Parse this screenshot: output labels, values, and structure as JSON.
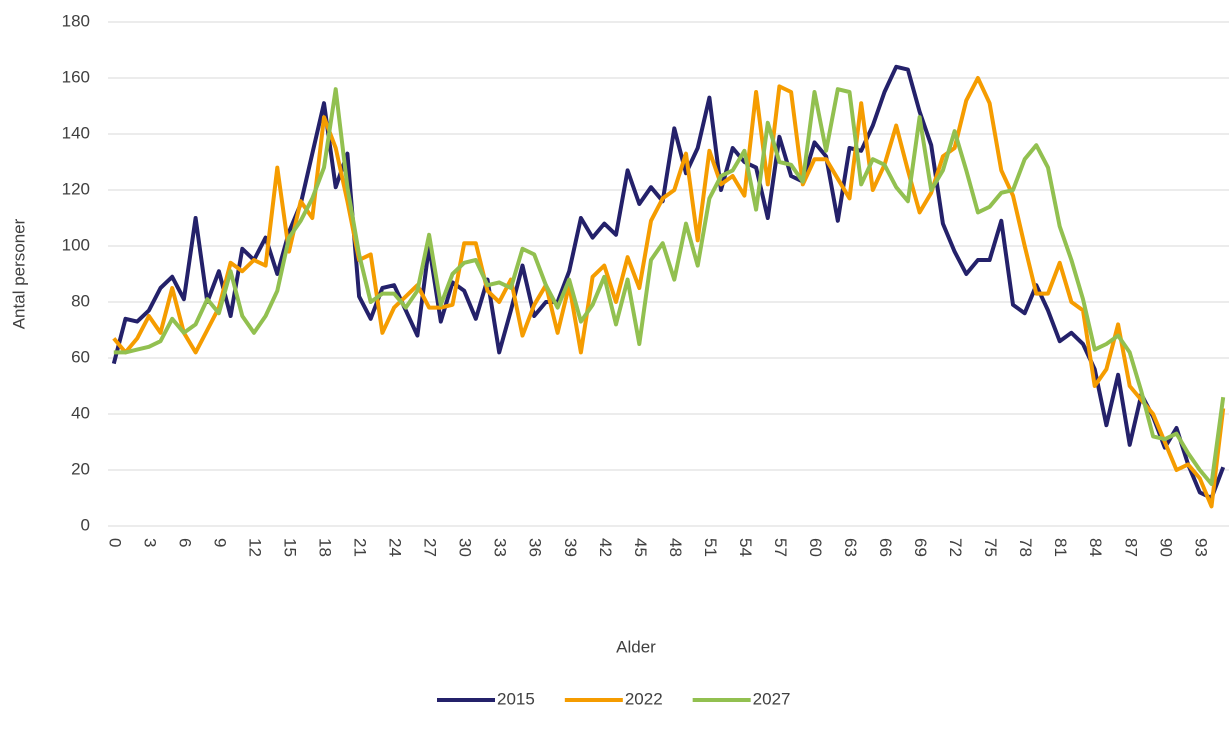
{
  "chart_data": {
    "type": "line",
    "x_label": "Alder",
    "y_label": "Antal personer",
    "categories": [
      0,
      null,
      null,
      3,
      null,
      null,
      6,
      null,
      null,
      9,
      null,
      null,
      12,
      null,
      null,
      15,
      null,
      null,
      18,
      null,
      null,
      21,
      null,
      null,
      24,
      null,
      null,
      27,
      null,
      null,
      30,
      null,
      null,
      33,
      null,
      null,
      36,
      null,
      null,
      39,
      null,
      null,
      42,
      null,
      null,
      45,
      null,
      null,
      48,
      null,
      null,
      51,
      null,
      null,
      54,
      null,
      null,
      57,
      null,
      null,
      60,
      null,
      null,
      63,
      null,
      null,
      66,
      null,
      null,
      69,
      null,
      null,
      72,
      null,
      null,
      75,
      null,
      null,
      78,
      null,
      null,
      81,
      null,
      null,
      84,
      null,
      null,
      87,
      null,
      null,
      90,
      null,
      null,
      93,
      null,
      null
    ],
    "series": [
      {
        "name": "2015",
        "color": "#24216a",
        "values": [
          58,
          74,
          73,
          77,
          85,
          89,
          81,
          110,
          80,
          91,
          75,
          99,
          95,
          103,
          90,
          105,
          115,
          133,
          151,
          121,
          133,
          82,
          74,
          85,
          86,
          77,
          68,
          100,
          73,
          87,
          84,
          74,
          88,
          62,
          77,
          93,
          75,
          80,
          80,
          91,
          110,
          103,
          108,
          104,
          127,
          115,
          121,
          116,
          142,
          126,
          135,
          153,
          120,
          135,
          130,
          128,
          110,
          139,
          125,
          123,
          137,
          132,
          109,
          135,
          134,
          143,
          155,
          164,
          163,
          148,
          136,
          108,
          98,
          90,
          95,
          95,
          109,
          79,
          76,
          86,
          77,
          66,
          69,
          65,
          56,
          36,
          54,
          29,
          47,
          39,
          28,
          35,
          22,
          12,
          10,
          21
        ]
      },
      {
        "name": "2022",
        "color": "#f59c00",
        "values": [
          67,
          62,
          67,
          75,
          69,
          85,
          69,
          62,
          70,
          78,
          94,
          91,
          95,
          93,
          128,
          98,
          116,
          110,
          146,
          135,
          116,
          95,
          97,
          69,
          78,
          82,
          86,
          78,
          78,
          79,
          101,
          101,
          84,
          80,
          88,
          68,
          79,
          86,
          69,
          86,
          62,
          89,
          93,
          80,
          96,
          85,
          109,
          117,
          120,
          133,
          102,
          134,
          122,
          125,
          118,
          155,
          122,
          157,
          155,
          122,
          131,
          131,
          124,
          117,
          151,
          120,
          129,
          143,
          127,
          112,
          119,
          132,
          135,
          152,
          160,
          151,
          127,
          118,
          100,
          83,
          83,
          94,
          80,
          77,
          50,
          56,
          72,
          50,
          45,
          40,
          30,
          20,
          22,
          17,
          7,
          42
        ]
      },
      {
        "name": "2027",
        "color": "#92c050",
        "values": [
          62,
          62,
          63,
          64,
          66,
          74,
          69,
          72,
          81,
          76,
          91,
          75,
          69,
          75,
          84,
          103,
          109,
          117,
          128,
          156,
          121,
          97,
          80,
          83,
          83,
          78,
          84,
          104,
          79,
          90,
          94,
          95,
          86,
          87,
          85,
          99,
          97,
          86,
          78,
          88,
          73,
          79,
          89,
          72,
          88,
          65,
          95,
          101,
          88,
          108,
          93,
          117,
          125,
          127,
          134,
          113,
          144,
          130,
          129,
          123,
          155,
          134,
          156,
          155,
          122,
          131,
          129,
          121,
          116,
          146,
          120,
          127,
          141,
          127,
          112,
          114,
          119,
          120,
          131,
          136,
          128,
          107,
          95,
          81,
          63,
          65,
          68,
          62,
          48,
          32,
          31,
          33,
          26,
          20,
          15,
          46
        ]
      }
    ],
    "ylim": [
      0,
      180
    ],
    "yticks": [
      0,
      20,
      40,
      60,
      80,
      100,
      120,
      140,
      160,
      180
    ],
    "grid": true,
    "legend": "bottom"
  }
}
